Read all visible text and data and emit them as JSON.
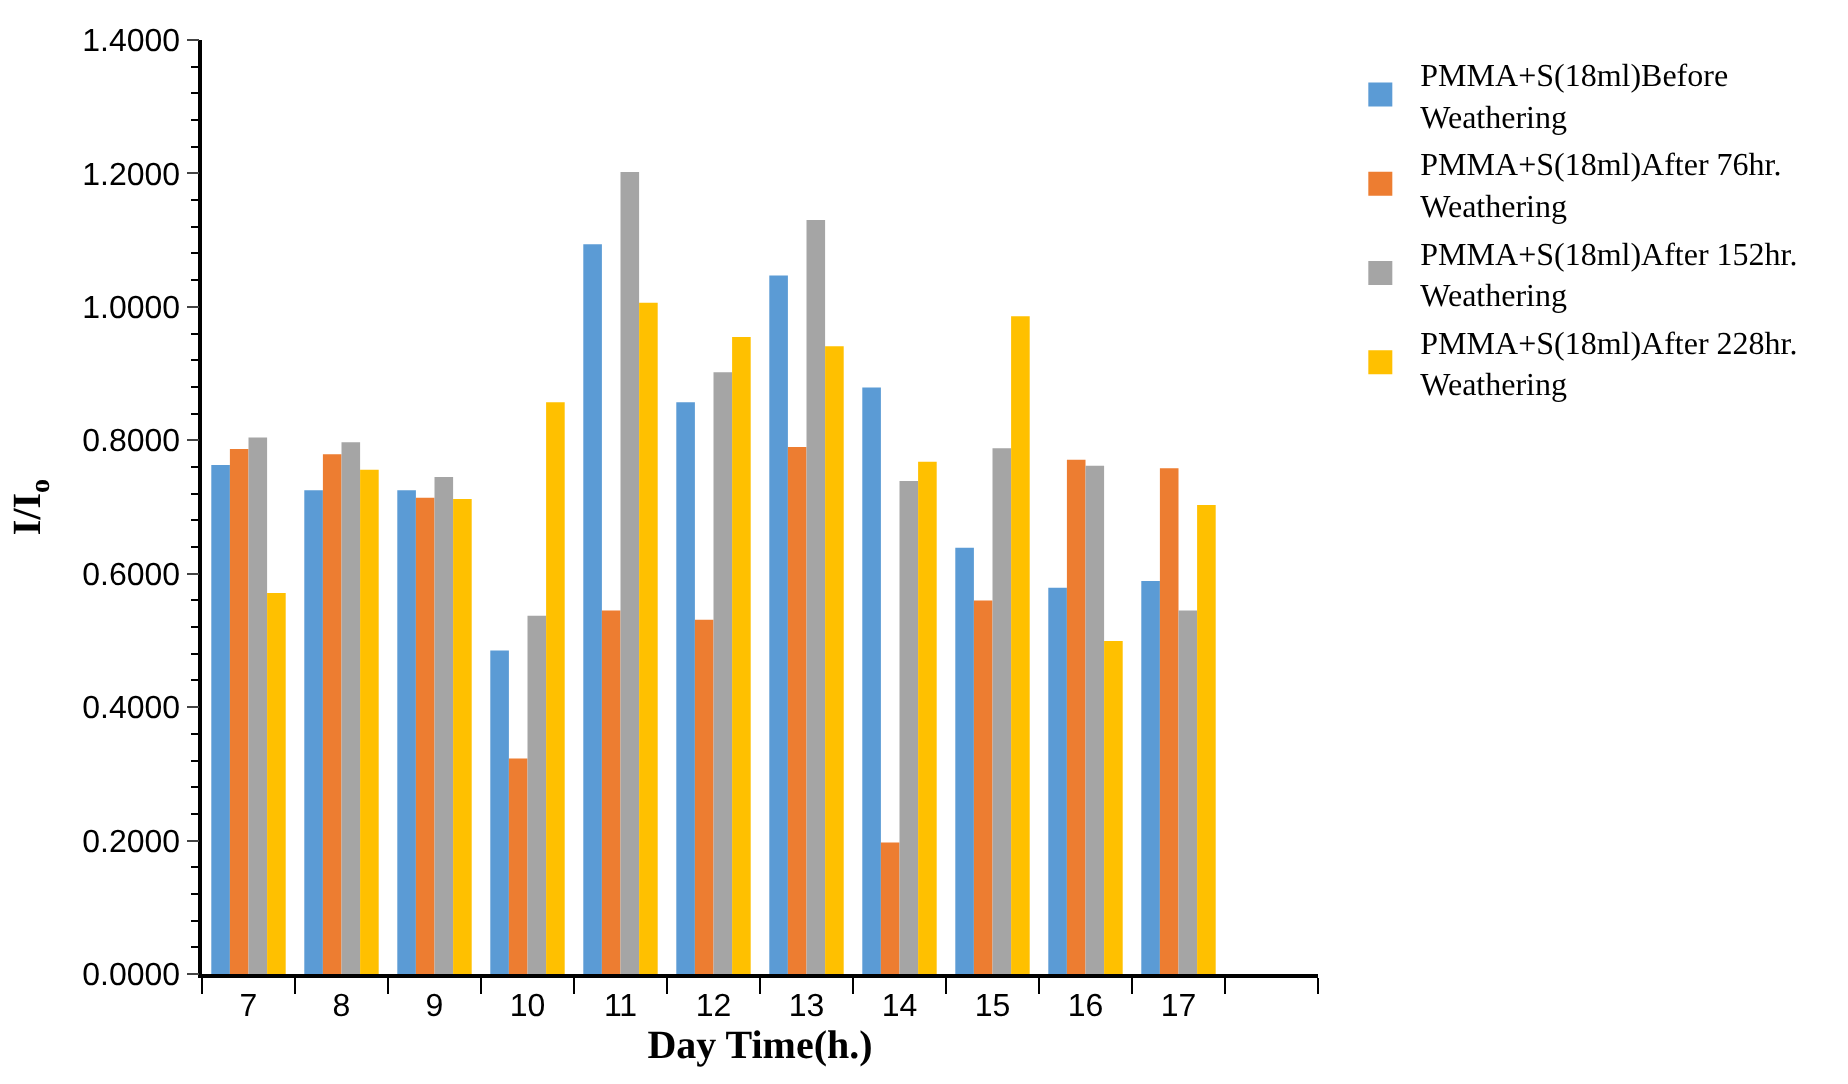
{
  "chart_data": {
    "type": "bar",
    "xlabel": "Day Time(h.)",
    "ylabel": "I/I$_{o}$",
    "categories": [
      "7",
      "8",
      "9",
      "10",
      "11",
      "12",
      "13",
      "14",
      "15",
      "16",
      "17",
      null
    ],
    "series": [
      {
        "name": "PMMA+S(18ml)Before Weathering",
        "color": "#5b9bd5",
        "values": [
          0.763,
          0.725,
          0.725,
          0.485,
          1.094,
          0.857,
          1.047,
          0.879,
          0.639,
          0.579,
          0.589,
          null
        ]
      },
      {
        "name": "PMMA+S(18ml)After 76hr. Weathering",
        "color": "#ed7d31",
        "values": [
          0.787,
          0.779,
          0.714,
          0.323,
          0.545,
          0.531,
          0.79,
          0.197,
          0.56,
          0.771,
          0.758,
          null
        ]
      },
      {
        "name": "PMMA+S(18ml)After 152hr. Weathering",
        "color": "#a5a5a5",
        "values": [
          0.804,
          0.797,
          0.745,
          0.537,
          1.202,
          0.902,
          1.13,
          0.739,
          0.788,
          0.762,
          0.545,
          null
        ]
      },
      {
        "name": "PMMA+S(18ml)After 228hr. Weathering",
        "color": "#ffc000",
        "values": [
          0.571,
          0.756,
          0.712,
          0.857,
          1.006,
          0.955,
          0.941,
          0.768,
          0.986,
          0.499,
          0.703,
          null
        ]
      }
    ],
    "ylim": [
      0,
      1.4
    ],
    "yticks": [
      {
        "value": 0,
        "label": "0.0000"
      },
      {
        "value": 0.2,
        "label": "0.2000"
      },
      {
        "value": 0.4,
        "label": "0.4000"
      },
      {
        "value": 0.6,
        "label": "0.6000"
      },
      {
        "value": 0.8,
        "label": "0.8000"
      },
      {
        "value": 1.0,
        "label": "1.0000"
      },
      {
        "value": 1.2,
        "label": "1.2000"
      },
      {
        "value": 1.4,
        "label": "1.4000"
      }
    ],
    "legend": "right"
  }
}
